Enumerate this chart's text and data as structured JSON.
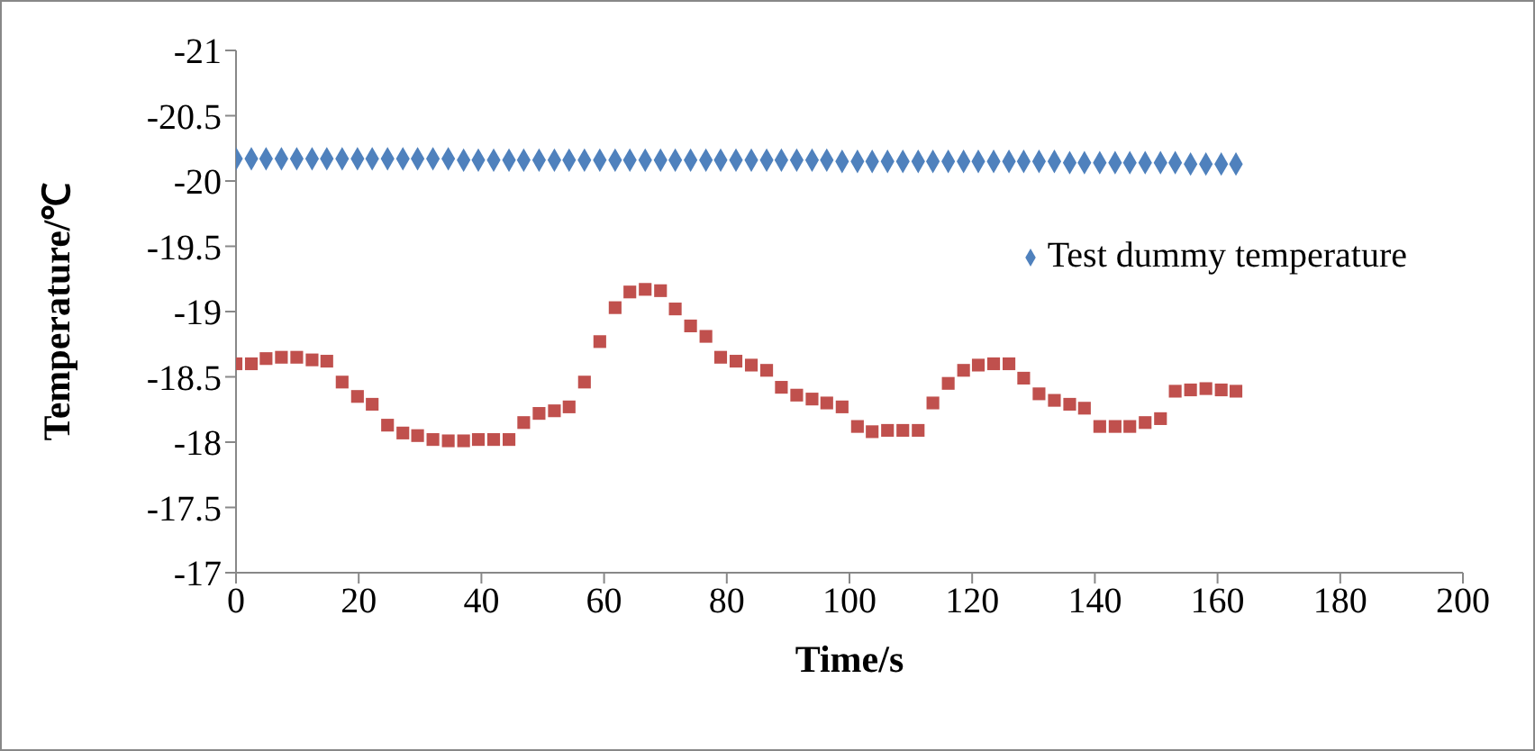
{
  "chart_data": {
    "type": "scatter",
    "xlabel": "Time/s",
    "ylabel": "Temperature/℃",
    "xlim": [
      0,
      200
    ],
    "xticks": [
      0,
      20,
      40,
      60,
      80,
      100,
      120,
      140,
      160,
      180,
      200
    ],
    "ylim": [
      -17,
      -21
    ],
    "yticks": [
      -21,
      -20.5,
      -20,
      -19.5,
      -19,
      -18.5,
      -18,
      -17.5,
      -17
    ],
    "grid": false,
    "legend": "right",
    "series": [
      {
        "name": "Test dummy temperature",
        "color": "#4f81bd",
        "marker": "diamond",
        "x": [
          0,
          2.5,
          4.9,
          7.4,
          9.9,
          12.4,
          14.8,
          17.3,
          19.8,
          22.2,
          24.7,
          27.2,
          29.6,
          32.1,
          34.6,
          37.1,
          39.5,
          42,
          44.5,
          46.9,
          49.4,
          51.9,
          54.3,
          56.8,
          59.3,
          61.8,
          64.2,
          66.7,
          69.2,
          71.6,
          74.1,
          76.6,
          79,
          81.5,
          84,
          86.5,
          88.9,
          91.4,
          93.9,
          96.3,
          98.8,
          101.3,
          103.7,
          106.2,
          108.7,
          111.2,
          113.6,
          116.1,
          118.6,
          121,
          123.5,
          126,
          128.4,
          130.9,
          133.4,
          135.9,
          138.3,
          140.8,
          143.3,
          145.7,
          148.2,
          150.7,
          153.1,
          155.6,
          158.1,
          160.6,
          163
        ],
        "values": [
          -20.17,
          -20.17,
          -20.17,
          -20.17,
          -20.17,
          -20.17,
          -20.17,
          -20.17,
          -20.17,
          -20.17,
          -20.17,
          -20.17,
          -20.17,
          -20.17,
          -20.17,
          -20.16,
          -20.16,
          -20.16,
          -20.16,
          -20.16,
          -20.16,
          -20.16,
          -20.16,
          -20.16,
          -20.16,
          -20.16,
          -20.16,
          -20.16,
          -20.16,
          -20.16,
          -20.16,
          -20.16,
          -20.16,
          -20.16,
          -20.16,
          -20.16,
          -20.16,
          -20.16,
          -20.16,
          -20.16,
          -20.15,
          -20.15,
          -20.15,
          -20.15,
          -20.15,
          -20.15,
          -20.15,
          -20.15,
          -20.15,
          -20.15,
          -20.15,
          -20.15,
          -20.15,
          -20.15,
          -20.15,
          -20.14,
          -20.14,
          -20.14,
          -20.14,
          -20.14,
          -20.14,
          -20.14,
          -20.14,
          -20.13,
          -20.13,
          -20.13,
          -20.13
        ]
      },
      {
        "color": "#c0504d",
        "marker": "square",
        "x": [
          0,
          2.5,
          4.9,
          7.4,
          9.9,
          12.4,
          14.8,
          17.3,
          19.8,
          22.2,
          24.7,
          27.2,
          29.6,
          32.1,
          34.6,
          37.1,
          39.5,
          42,
          44.5,
          46.9,
          49.4,
          51.9,
          54.3,
          56.8,
          59.3,
          61.8,
          64.2,
          66.7,
          69.2,
          71.6,
          74.1,
          76.6,
          79,
          81.5,
          84,
          86.5,
          88.9,
          91.4,
          93.9,
          96.3,
          98.8,
          101.3,
          103.7,
          106.2,
          108.7,
          111.2,
          113.6,
          116.1,
          118.6,
          121,
          123.5,
          126,
          128.4,
          130.9,
          133.4,
          135.9,
          138.3,
          140.8,
          143.3,
          145.7,
          148.2,
          150.7,
          153.1,
          155.6,
          158.1,
          160.6,
          163
        ],
        "values": [
          -18.6,
          -18.6,
          -18.64,
          -18.65,
          -18.65,
          -18.63,
          -18.62,
          -18.46,
          -18.35,
          -18.29,
          -18.13,
          -18.07,
          -18.05,
          -18.02,
          -18.01,
          -18.01,
          -18.02,
          -18.02,
          -18.02,
          -18.15,
          -18.22,
          -18.24,
          -18.27,
          -18.46,
          -18.77,
          -19.03,
          -19.15,
          -19.17,
          -19.16,
          -19.02,
          -18.89,
          -18.81,
          -18.65,
          -18.62,
          -18.59,
          -18.55,
          -18.42,
          -18.36,
          -18.33,
          -18.3,
          -18.27,
          -18.12,
          -18.08,
          -18.09,
          -18.09,
          -18.09,
          -18.3,
          -18.45,
          -18.55,
          -18.59,
          -18.6,
          -18.6,
          -18.49,
          -18.37,
          -18.32,
          -18.29,
          -18.26,
          -18.12,
          -18.12,
          -18.12,
          -18.15,
          -18.18,
          -18.39,
          -18.4,
          -18.41,
          -18.4,
          -18.39
        ]
      }
    ]
  }
}
